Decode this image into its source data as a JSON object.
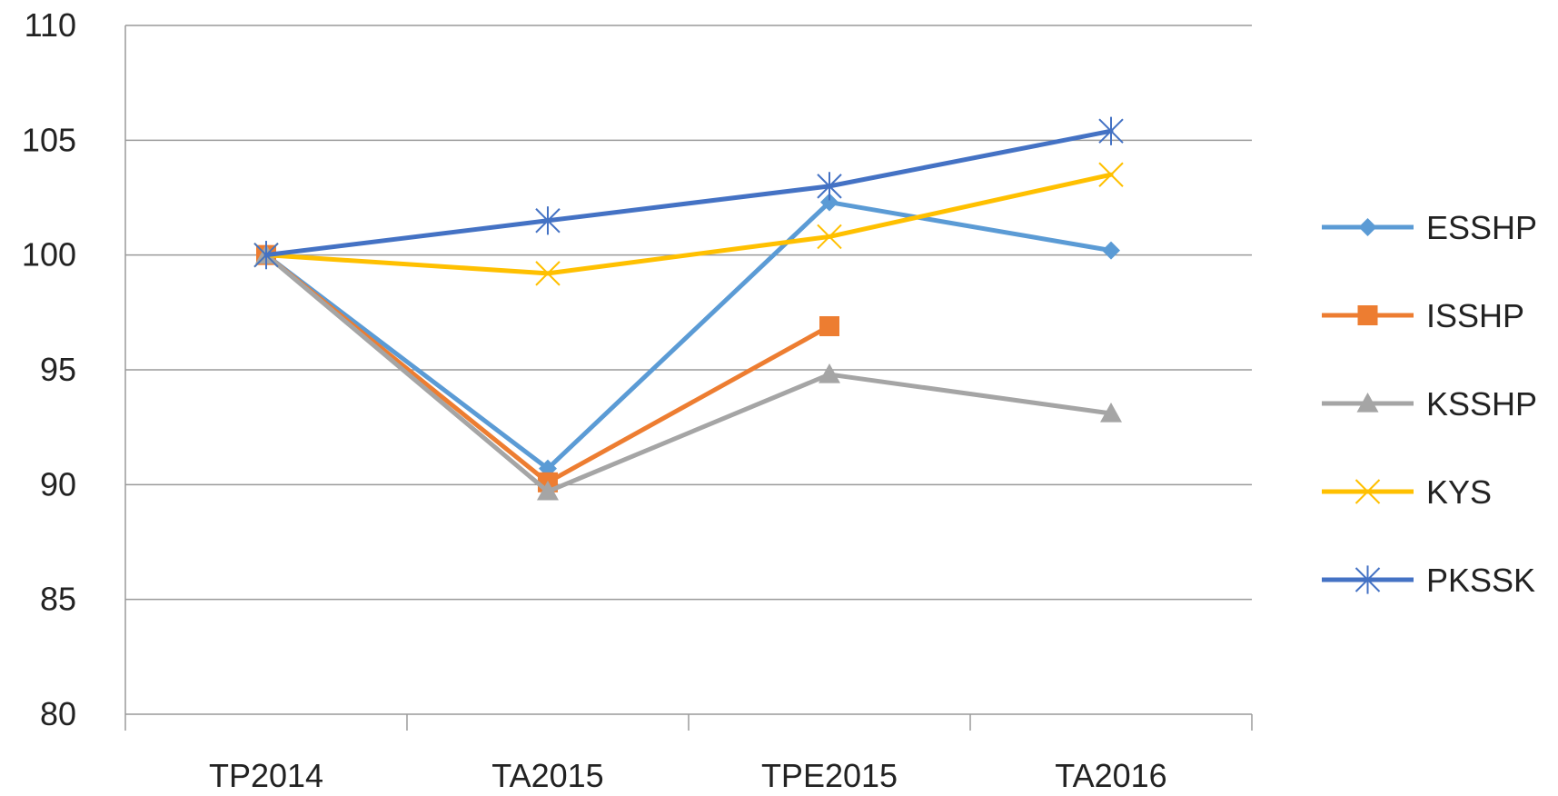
{
  "chart_data": {
    "type": "line",
    "title": "",
    "xlabel": "",
    "ylabel": "",
    "categories": [
      "TP2014",
      "TA2015",
      "TPE2015",
      "TA2016"
    ],
    "ylim": [
      80,
      110
    ],
    "yticks": [
      80,
      85,
      90,
      95,
      100,
      105,
      110
    ],
    "grid": true,
    "legend_position": "right",
    "series": [
      {
        "name": "ESSHP",
        "values": [
          100,
          90.7,
          102.3,
          100.2
        ],
        "color": "#5B9BD5",
        "marker": "diamond"
      },
      {
        "name": "ISSHP",
        "values": [
          100,
          90.1,
          96.9,
          null
        ],
        "color": "#ED7D31",
        "marker": "square"
      },
      {
        "name": "KSSHP",
        "values": [
          100,
          89.7,
          94.8,
          93.1
        ],
        "color": "#A5A5A5",
        "marker": "triangle"
      },
      {
        "name": "KYS",
        "values": [
          100,
          99.2,
          100.8,
          103.5
        ],
        "color": "#FFC000",
        "marker": "x"
      },
      {
        "name": "PKSSK",
        "values": [
          100,
          101.5,
          103.0,
          105.4
        ],
        "color": "#4472C4",
        "marker": "star"
      }
    ]
  }
}
